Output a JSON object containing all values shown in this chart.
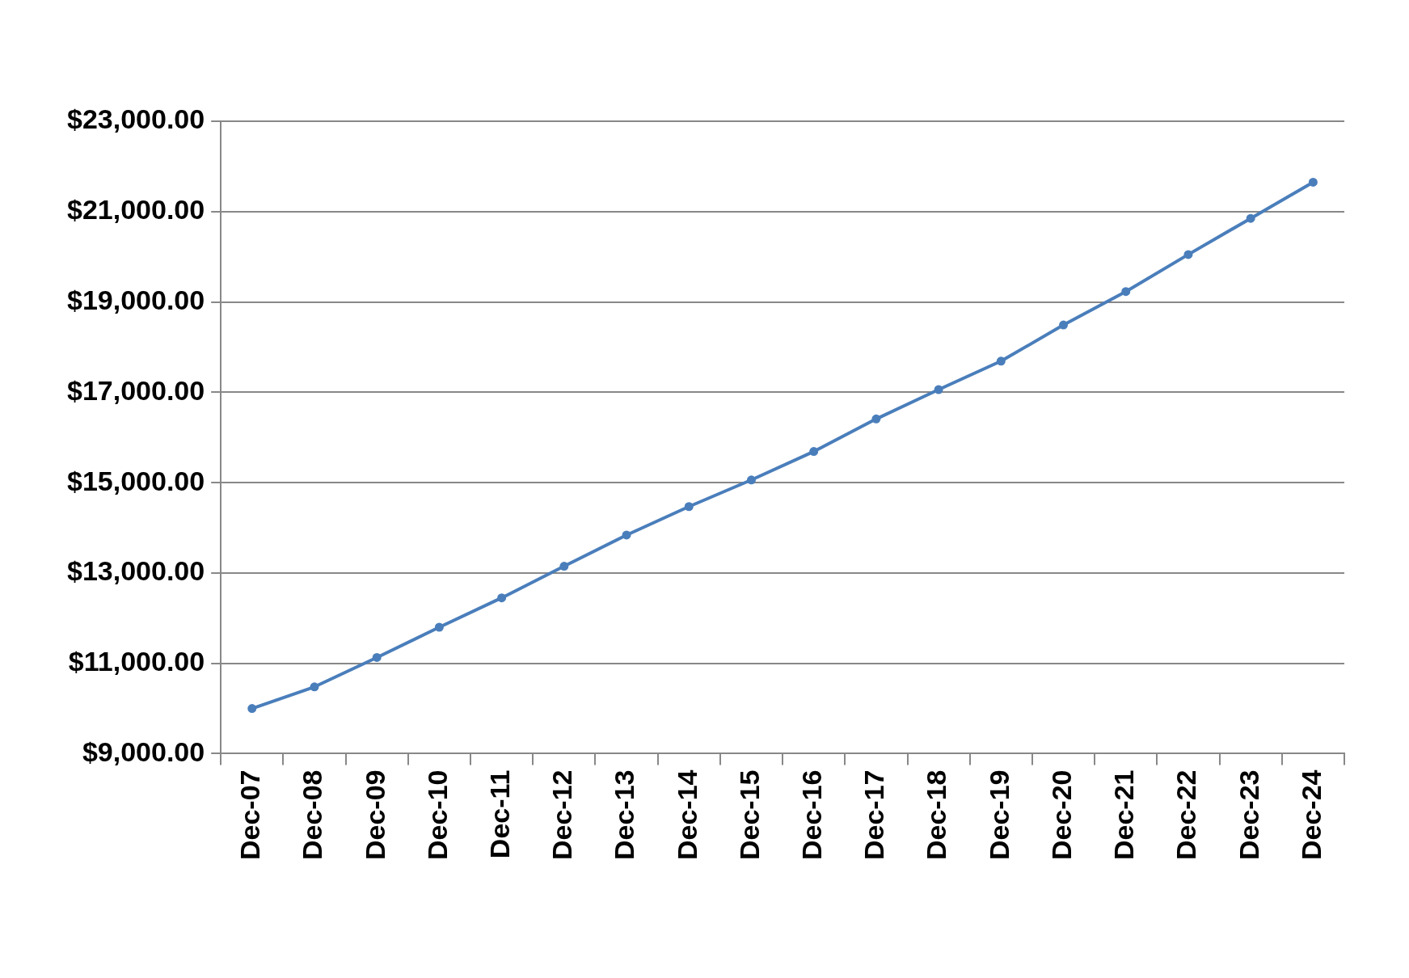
{
  "chart_data": {
    "type": "line",
    "categories": [
      "Dec-07",
      "Dec-08",
      "Dec-09",
      "Dec-10",
      "Dec-11",
      "Dec-12",
      "Dec-13",
      "Dec-14",
      "Dec-15",
      "Dec-16",
      "Dec-17",
      "Dec-18",
      "Dec-19",
      "Dec-20",
      "Dec-21",
      "Dec-22",
      "Dec-23",
      "Dec-24"
    ],
    "series": [
      {
        "color": "#4a7ebb",
        "values": [
          10000,
          10480,
          11130,
          11800,
          12450,
          13150,
          13840,
          14470,
          15060,
          15690,
          16410,
          17060,
          17690,
          18490,
          19230,
          20050,
          20850,
          21650
        ]
      }
    ],
    "ylim": [
      9000,
      23000
    ],
    "yticks": [
      {
        "value": 9000,
        "label": "$9,000.00"
      },
      {
        "value": 11000,
        "label": "$11,000.00"
      },
      {
        "value": 13000,
        "label": "$13,000.00"
      },
      {
        "value": 15000,
        "label": "$15,000.00"
      },
      {
        "value": 17000,
        "label": "$17,000.00"
      },
      {
        "value": 19000,
        "label": "$19,000.00"
      },
      {
        "value": 21000,
        "label": "$21,000.00"
      },
      {
        "value": 23000,
        "label": "$23,000.00"
      }
    ],
    "grid": "y",
    "marker": "circle",
    "line_style": "solid",
    "legend": false
  }
}
